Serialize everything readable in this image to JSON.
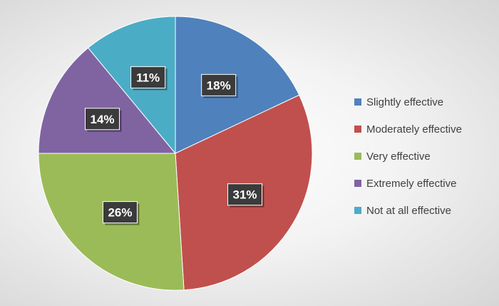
{
  "chart_data": {
    "type": "pie",
    "title": "",
    "slices": [
      {
        "label": "Slightly effective",
        "value": 18,
        "display": "18%",
        "color": "#4f81bd"
      },
      {
        "label": "Moderately effective",
        "value": 31,
        "display": "31%",
        "color": "#c0504d"
      },
      {
        "label": "Very effective",
        "value": 26,
        "display": "26%",
        "color": "#9bbb59"
      },
      {
        "label": "Extremely effective",
        "value": 14,
        "display": "14%",
        "color": "#8064a2"
      },
      {
        "label": "Not at all effective",
        "value": 11,
        "display": "11%",
        "color": "#4bacc6"
      }
    ],
    "legend_position": "right",
    "start_angle": "top, clockwise"
  }
}
